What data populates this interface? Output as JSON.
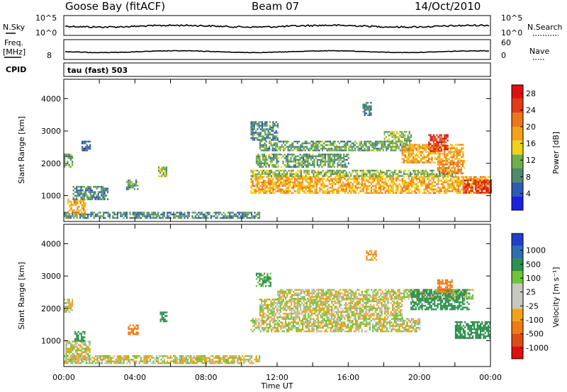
{
  "header": {
    "station": "Goose Bay (fitACF)",
    "beam": "Beam 07",
    "date": "14/Oct/2010"
  },
  "panels": {
    "nsky": {
      "left_label": "N.Sky",
      "right_label": "N.Search",
      "left_ticks": [
        "10^5",
        "10^0"
      ],
      "right_ticks": [
        "10^5",
        "10^0"
      ],
      "right_legend_style": "dotted"
    },
    "freq": {
      "left_label_line1": "Freq.",
      "left_label_line2": "[MHz]",
      "left_ticks": [
        "8"
      ],
      "right_label": "Nave",
      "right_ticks": [
        "60",
        "0"
      ],
      "right_legend_style": "dotted"
    },
    "cpid": {
      "label": "CPID",
      "value": "tau (fast) 503"
    }
  },
  "colors": {
    "power_scale": [
      "#1f1fe0",
      "#2e5bb3",
      "#4f8a6a",
      "#6fb04a",
      "#f1d21a",
      "#f3a21a",
      "#f0741a",
      "#e03c16",
      "#e01010"
    ],
    "velocity_scale": [
      "#1f3fd0",
      "#2f6fb0",
      "#2f8f4f",
      "#6fc43a",
      "#c8c8c0",
      "#c8c8c0",
      "#f2a21a",
      "#f07a16",
      "#e04a14",
      "#e01010"
    ],
    "ground_scatter": "#bebebe"
  },
  "chart_data": [
    {
      "type": "heatmap",
      "name": "power",
      "xlabel": "",
      "ylabel": "Slant Range [km]",
      "xlim": [
        "00:00",
        "24:00"
      ],
      "ylim": [
        200,
        4600
      ],
      "yticks": [
        1000,
        2000,
        3000,
        4000
      ],
      "xtick_hours": [
        0,
        2,
        4,
        6,
        8,
        10,
        12,
        14,
        16,
        18,
        20,
        22,
        24
      ],
      "colorbar": {
        "label": "Power [dB]",
        "ticks": [
          4,
          8,
          12,
          16,
          20,
          24,
          28
        ],
        "range": [
          0,
          30
        ]
      },
      "regions": [
        {
          "t0": 0.0,
          "t1": 11.0,
          "r0": 300,
          "r1": 500,
          "value": 8
        },
        {
          "t0": 0.0,
          "t1": 0.5,
          "r0": 1900,
          "r1": 2300,
          "value": 10
        },
        {
          "t0": 0.2,
          "t1": 1.2,
          "r0": 450,
          "r1": 900,
          "value": 18
        },
        {
          "t0": 0.5,
          "t1": 2.5,
          "r0": 900,
          "r1": 1300,
          "value": 8
        },
        {
          "t0": 1.0,
          "t1": 1.5,
          "r0": 2400,
          "r1": 2700,
          "value": 6
        },
        {
          "t0": 3.5,
          "t1": 4.2,
          "r0": 1200,
          "r1": 1500,
          "value": 10
        },
        {
          "t0": 5.3,
          "t1": 5.8,
          "r0": 1600,
          "r1": 1900,
          "value": 12
        },
        {
          "t0": 10.5,
          "t1": 24.0,
          "r0": 1100,
          "r1": 1600,
          "value": 18
        },
        {
          "t0": 10.5,
          "t1": 22.0,
          "r0": 1600,
          "r1": 1800,
          "value": 12
        },
        {
          "t0": 10.8,
          "t1": 16.0,
          "r0": 1900,
          "r1": 2300,
          "value": 10
        },
        {
          "t0": 11.0,
          "t1": 19.5,
          "r0": 2400,
          "r1": 2700,
          "value": 10
        },
        {
          "t0": 10.5,
          "t1": 12.0,
          "r0": 2700,
          "r1": 3300,
          "value": 8
        },
        {
          "t0": 19.0,
          "t1": 22.5,
          "r0": 2000,
          "r1": 2600,
          "value": 18
        },
        {
          "t0": 20.5,
          "t1": 21.6,
          "r0": 2400,
          "r1": 2900,
          "value": 26
        },
        {
          "t0": 21.0,
          "t1": 22.5,
          "r0": 1700,
          "r1": 2100,
          "value": 20
        },
        {
          "t0": 22.5,
          "t1": 24.0,
          "r0": 1100,
          "r1": 1500,
          "value": 26
        },
        {
          "t0": 16.8,
          "t1": 17.3,
          "r0": 3500,
          "r1": 3900,
          "value": 8
        },
        {
          "t0": 18.0,
          "t1": 19.5,
          "r0": 2700,
          "r1": 3000,
          "value": 12
        }
      ]
    },
    {
      "type": "heatmap",
      "name": "velocity",
      "xlabel": "Time UT",
      "ylabel": "Slant Range [km]",
      "xlim": [
        "00:00",
        "24:00"
      ],
      "ylim": [
        200,
        4600
      ],
      "yticks": [
        1000,
        2000,
        3000,
        4000
      ],
      "xtick_labels": [
        "00:00",
        "04:00",
        "08:00",
        "12:00",
        "16:00",
        "20:00",
        "00:00"
      ],
      "xtick_hours": [
        0,
        2,
        4,
        6,
        8,
        10,
        12,
        14,
        16,
        18,
        20,
        22,
        24
      ],
      "colorbar": {
        "label": "Velocity [m s⁻¹]",
        "ticks": [
          "1000",
          "500",
          "100",
          "25",
          "-25",
          "-100",
          "-500",
          "-1000"
        ]
      },
      "regions": [
        {
          "t0": 0.0,
          "t1": 11.0,
          "r0": 300,
          "r1": 550,
          "value": 0
        },
        {
          "t0": 0.1,
          "t1": 1.5,
          "r0": 450,
          "r1": 1000,
          "value": 0
        },
        {
          "t0": 0.0,
          "t1": 0.5,
          "r0": 1900,
          "r1": 2300,
          "value": 0
        },
        {
          "t0": 0.6,
          "t1": 1.2,
          "r0": 1000,
          "r1": 1300,
          "value": 200
        },
        {
          "t0": 3.6,
          "t1": 4.2,
          "r0": 1200,
          "r1": 1500,
          "value": -200
        },
        {
          "t0": 5.4,
          "t1": 5.8,
          "r0": 1600,
          "r1": 1900,
          "value": 200
        },
        {
          "t0": 10.5,
          "t1": 20.0,
          "r0": 1300,
          "r1": 1700,
          "value": 0
        },
        {
          "t0": 11.0,
          "t1": 19.0,
          "r0": 1700,
          "r1": 2300,
          "value": 0
        },
        {
          "t0": 12.0,
          "t1": 23.0,
          "r0": 2300,
          "r1": 2600,
          "value": 0
        },
        {
          "t0": 19.5,
          "t1": 22.8,
          "r0": 1950,
          "r1": 2600,
          "value": 200
        },
        {
          "t0": 21.0,
          "t1": 21.8,
          "r0": 2500,
          "r1": 2900,
          "value": -300
        },
        {
          "t0": 22.0,
          "t1": 24.0,
          "r0": 1100,
          "r1": 1600,
          "value": 200
        },
        {
          "t0": 10.8,
          "t1": 11.6,
          "r0": 2700,
          "r1": 3100,
          "value": 150
        },
        {
          "t0": 17.0,
          "t1": 17.6,
          "r0": 3500,
          "r1": 3800,
          "value": -100
        }
      ]
    }
  ]
}
